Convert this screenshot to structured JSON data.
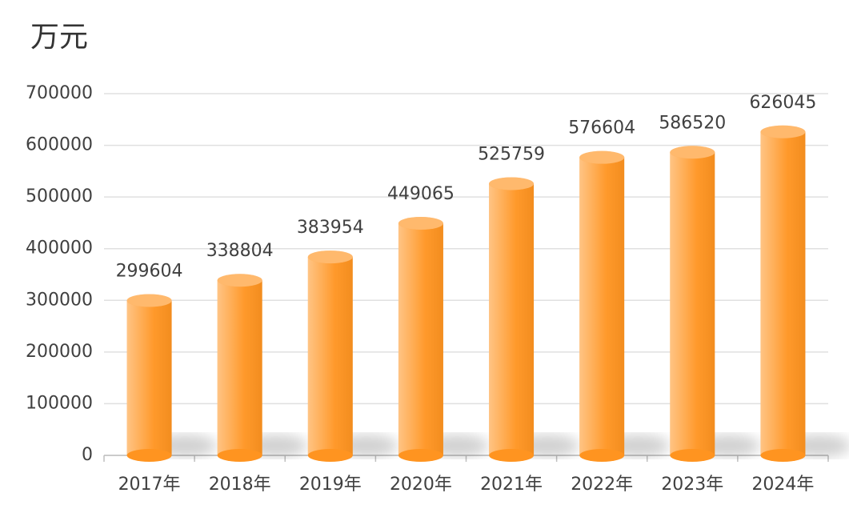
{
  "chart_data": {
    "type": "bar",
    "title": "万元",
    "categories": [
      "2017年",
      "2018年",
      "2019年",
      "2020年",
      "2021年",
      "2022年",
      "2023年",
      "2024年"
    ],
    "values": [
      299604,
      338804,
      383954,
      449065,
      525759,
      576604,
      586520,
      626045
    ],
    "color": "#ff9420",
    "ylim": [
      0,
      700000
    ],
    "yticks": [
      0,
      100000,
      200000,
      300000,
      400000,
      500000,
      600000,
      700000
    ],
    "grid": true
  }
}
